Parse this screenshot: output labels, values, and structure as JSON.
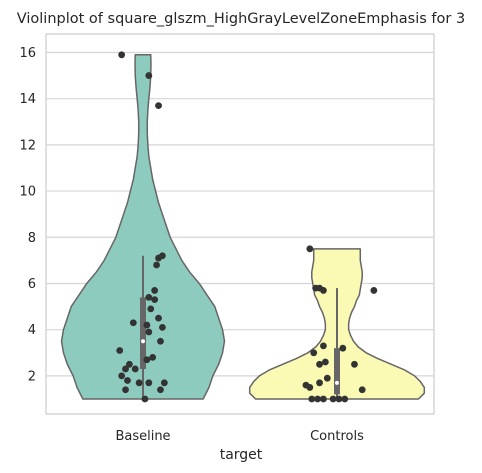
{
  "chart_data": {
    "type": "violin",
    "title": "Violinplot of square_glszm_HighGrayLevelZoneEmphasis for 3",
    "xlabel": "target",
    "ylabel": "",
    "categories": [
      "Baseline",
      "Controls"
    ],
    "ylim": [
      0.35,
      16.8
    ],
    "yticks": [
      2,
      4,
      6,
      8,
      10,
      12,
      14,
      16
    ],
    "grid": true,
    "colors": {
      "Baseline": "#8ecbbf",
      "Controls": "#fafab4"
    },
    "series": [
      {
        "category": "Baseline",
        "range": [
          1.0,
          15.9
        ],
        "quartiles": [
          2.3,
          3.5,
          5.4
        ],
        "whisker": [
          1.0,
          7.2
        ],
        "density": [
          [
            1.0,
            0.31
          ],
          [
            1.5,
            0.34
          ],
          [
            2.0,
            0.36
          ],
          [
            2.5,
            0.39
          ],
          [
            3.0,
            0.41
          ],
          [
            3.5,
            0.42
          ],
          [
            4.0,
            0.41
          ],
          [
            4.5,
            0.39
          ],
          [
            5.0,
            0.37
          ],
          [
            5.5,
            0.33
          ],
          [
            6.0,
            0.29
          ],
          [
            6.5,
            0.24
          ],
          [
            7.0,
            0.2
          ],
          [
            7.5,
            0.17
          ],
          [
            8.0,
            0.14
          ],
          [
            8.5,
            0.12
          ],
          [
            9.0,
            0.1
          ],
          [
            9.5,
            0.08
          ],
          [
            10.0,
            0.065
          ],
          [
            10.5,
            0.05
          ],
          [
            11.0,
            0.04
          ],
          [
            11.5,
            0.03
          ],
          [
            12.0,
            0.025
          ],
          [
            12.5,
            0.022
          ],
          [
            13.0,
            0.022
          ],
          [
            13.5,
            0.025
          ],
          [
            14.0,
            0.03
          ],
          [
            14.5,
            0.036
          ],
          [
            15.0,
            0.04
          ],
          [
            15.5,
            0.041
          ],
          [
            15.9,
            0.04
          ]
        ],
        "points": [
          [
            -0.11,
            15.9
          ],
          [
            0.03,
            15.0
          ],
          [
            0.08,
            13.7
          ],
          [
            0.1,
            7.2
          ],
          [
            0.08,
            7.1
          ],
          [
            0.07,
            6.8
          ],
          [
            0.06,
            5.7
          ],
          [
            0.03,
            5.4
          ],
          [
            0.06,
            5.3
          ],
          [
            0.04,
            4.9
          ],
          [
            0.08,
            4.5
          ],
          [
            -0.05,
            4.3
          ],
          [
            0.02,
            4.2
          ],
          [
            0.1,
            4.1
          ],
          [
            0.03,
            3.9
          ],
          [
            0.09,
            3.5
          ],
          [
            -0.12,
            3.1
          ],
          [
            0.05,
            2.8
          ],
          [
            0.02,
            2.7
          ],
          [
            -0.07,
            2.5
          ],
          [
            -0.09,
            2.3
          ],
          [
            -0.04,
            2.3
          ],
          [
            -0.11,
            2.0
          ],
          [
            -0.08,
            1.8
          ],
          [
            -0.02,
            1.7
          ],
          [
            0.03,
            1.7
          ],
          [
            0.11,
            1.7
          ],
          [
            -0.09,
            1.4
          ],
          [
            0.09,
            1.4
          ],
          [
            0.01,
            1.0
          ]
        ]
      },
      {
        "category": "Controls",
        "range": [
          1.0,
          7.5
        ],
        "quartiles": [
          1.2,
          1.7,
          3.2
        ],
        "whisker": [
          1.0,
          5.8
        ],
        "density": [
          [
            1.0,
            0.42
          ],
          [
            1.25,
            0.45
          ],
          [
            1.5,
            0.45
          ],
          [
            1.75,
            0.43
          ],
          [
            2.0,
            0.4
          ],
          [
            2.25,
            0.35
          ],
          [
            2.5,
            0.28
          ],
          [
            2.75,
            0.21
          ],
          [
            3.0,
            0.15
          ],
          [
            3.25,
            0.11
          ],
          [
            3.5,
            0.085
          ],
          [
            3.75,
            0.07
          ],
          [
            4.0,
            0.06
          ],
          [
            4.25,
            0.06
          ],
          [
            4.5,
            0.065
          ],
          [
            4.75,
            0.075
          ],
          [
            5.0,
            0.09
          ],
          [
            5.25,
            0.1
          ],
          [
            5.5,
            0.115
          ],
          [
            5.75,
            0.12
          ],
          [
            6.0,
            0.125
          ],
          [
            6.25,
            0.13
          ],
          [
            6.5,
            0.13
          ],
          [
            6.75,
            0.125
          ],
          [
            7.0,
            0.12
          ],
          [
            7.25,
            0.12
          ],
          [
            7.5,
            0.12
          ]
        ],
        "points": [
          [
            -0.14,
            7.5
          ],
          [
            -0.09,
            5.8
          ],
          [
            -0.07,
            5.7
          ],
          [
            -0.11,
            5.8
          ],
          [
            0.19,
            5.7
          ],
          [
            -0.07,
            3.3
          ],
          [
            -0.12,
            3.0
          ],
          [
            0.03,
            3.2
          ],
          [
            -0.06,
            2.6
          ],
          [
            -0.09,
            2.5
          ],
          [
            0.09,
            2.5
          ],
          [
            -0.05,
            1.9
          ],
          [
            -0.09,
            1.7
          ],
          [
            -0.16,
            1.6
          ],
          [
            -0.14,
            1.5
          ],
          [
            0.13,
            1.4
          ],
          [
            -0.13,
            1.0
          ],
          [
            -0.1,
            1.0
          ],
          [
            -0.07,
            1.0
          ],
          [
            -0.02,
            1.0
          ],
          [
            0.01,
            1.0
          ],
          [
            0.04,
            1.0
          ]
        ]
      }
    ]
  }
}
